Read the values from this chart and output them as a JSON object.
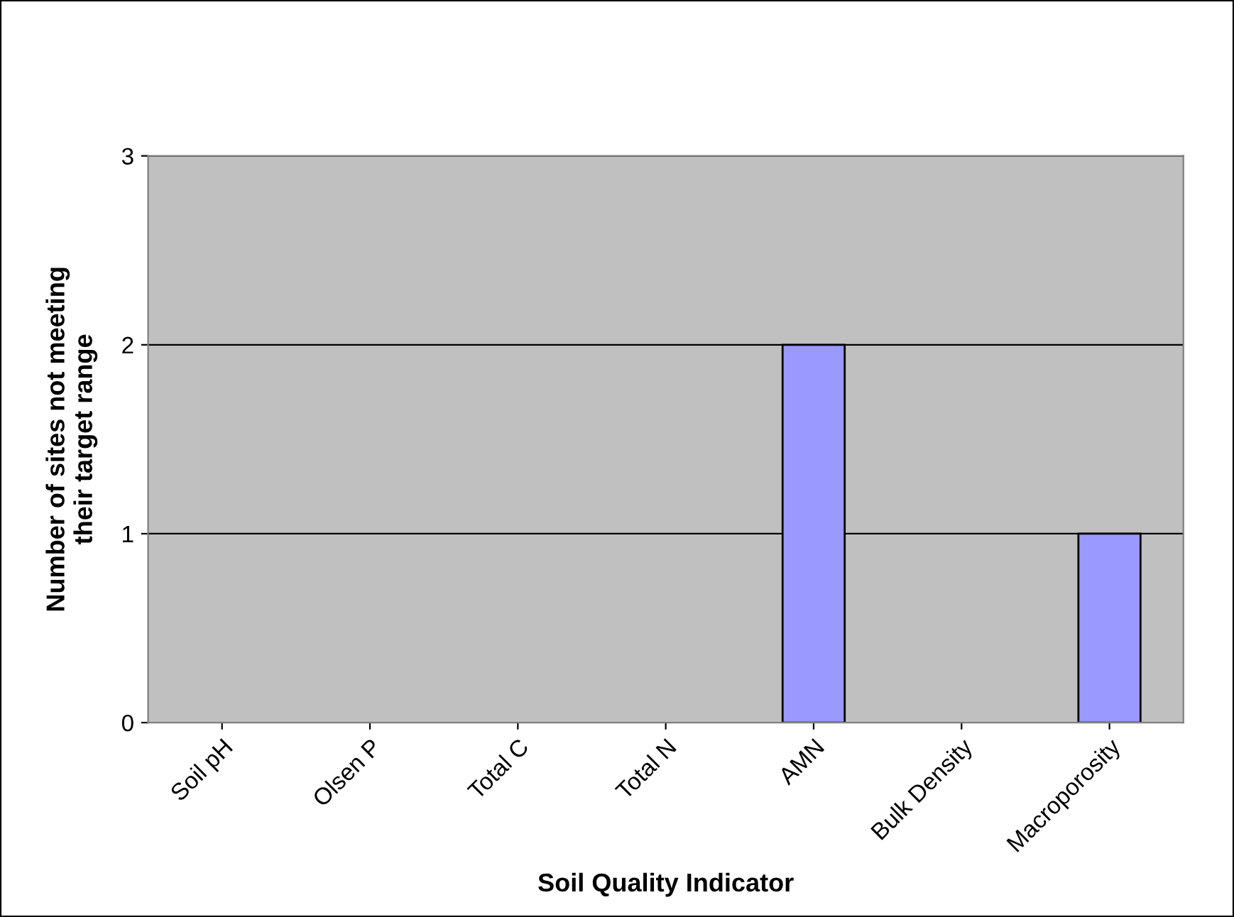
{
  "chart_data": {
    "type": "bar",
    "categories": [
      "Soil pH",
      "Olsen P",
      "Total C",
      "Total N",
      "AMN",
      "Bulk Density",
      "Macroporosity"
    ],
    "values": [
      0,
      0,
      0,
      0,
      2,
      0,
      1
    ],
    "color": "#9999ff",
    "xlabel": "Soil Quality Indicator",
    "ylabel": "Number of sites not meeting\ntheir target range",
    "ylim": [
      0,
      3
    ],
    "yticks": [
      0,
      1,
      2,
      3
    ],
    "grid": "y",
    "legend": false
  }
}
